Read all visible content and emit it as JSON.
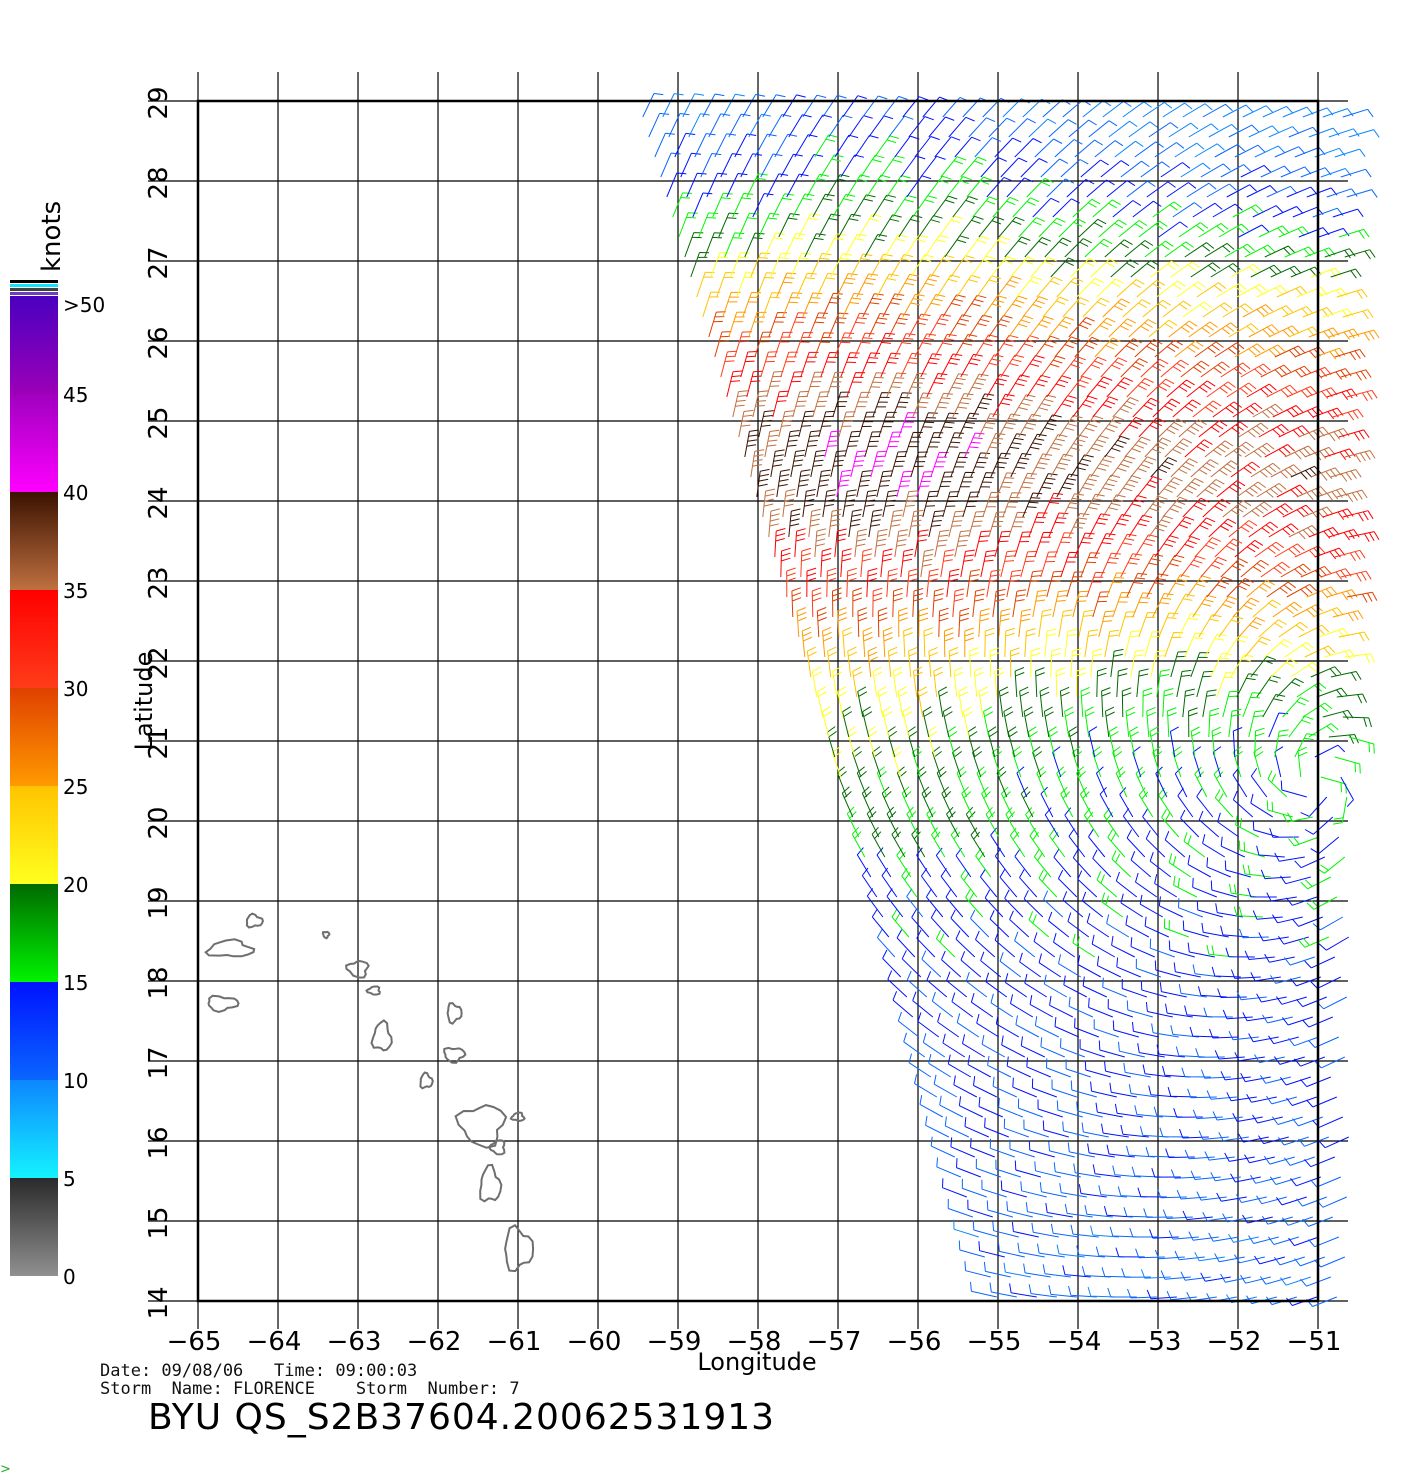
{
  "colorbar": {
    "unit": "knots",
    "tick_labels": [
      "0",
      "5",
      "10",
      "15",
      "20",
      "25",
      "30",
      "35",
      "40",
      "45",
      ">50"
    ],
    "bands": [
      {
        "from": 0,
        "to": 5,
        "top": "#2a2a2a",
        "bottom": "#909090"
      },
      {
        "from": 5,
        "to": 10,
        "top": "#0d86ff",
        "bottom": "#14f3ff"
      },
      {
        "from": 10,
        "to": 15,
        "top": "#0012ff",
        "bottom": "#0a66ff"
      },
      {
        "from": 15,
        "to": 20,
        "top": "#006a00",
        "bottom": "#00f400"
      },
      {
        "from": 20,
        "to": 25,
        "top": "#ffc400",
        "bottom": "#ffff1e"
      },
      {
        "from": 25,
        "to": 30,
        "top": "#e04000",
        "bottom": "#ff9a00"
      },
      {
        "from": 30,
        "to": 35,
        "top": "#ff0000",
        "bottom": "#ff3c1a"
      },
      {
        "from": 35,
        "to": 40,
        "top": "#3a1200",
        "bottom": "#c07040"
      },
      {
        "from": 40,
        "to": 45,
        "top": "#a000c0",
        "bottom": "#ff00ff"
      },
      {
        "from": 45,
        "to": 50,
        "top": "#4a00c0",
        "bottom": "#9c00b8"
      }
    ]
  },
  "map": {
    "xlabel": "Longitude",
    "ylabel": "Latitude",
    "lon_range": [
      -65,
      -51
    ],
    "lat_range": [
      14,
      29
    ],
    "lon_ticks": [
      "−65",
      "−64",
      "−63",
      "−62",
      "−61",
      "−60",
      "−59",
      "−58",
      "−57",
      "−56",
      "−55",
      "−54",
      "−53",
      "−52",
      "−51"
    ],
    "lat_ticks": [
      "14",
      "15",
      "16",
      "17",
      "18",
      "19",
      "20",
      "21",
      "22",
      "23",
      "24",
      "25",
      "26",
      "27",
      "28",
      "29"
    ],
    "coastline_color": "#6e6e6e",
    "islands": [
      {
        "name": "Puerto Rico",
        "lon": -64.6,
        "lat": 18.4
      },
      {
        "name": "Vieques",
        "lon": -64.3,
        "lat": 18.75
      },
      {
        "name": "St. Croix",
        "lon": -64.7,
        "lat": 17.72
      },
      {
        "name": "Saba",
        "lon": -63.4,
        "lat": 18.58
      },
      {
        "name": "Anguilla/St. Martin",
        "lon": -63.0,
        "lat": 18.15
      },
      {
        "name": "St. Barthelemy",
        "lon": -62.8,
        "lat": 17.88
      },
      {
        "name": "St. Kitts & Nevis",
        "lon": -62.7,
        "lat": 17.3
      },
      {
        "name": "Montserrat",
        "lon": -62.15,
        "lat": 16.75
      },
      {
        "name": "Barbuda",
        "lon": -61.8,
        "lat": 17.6
      },
      {
        "name": "Antigua",
        "lon": -61.8,
        "lat": 17.08
      },
      {
        "name": "Guadeloupe",
        "lon": -61.45,
        "lat": 16.2
      },
      {
        "name": "Marie-Galante",
        "lon": -61.25,
        "lat": 15.92
      },
      {
        "name": "Desirade",
        "lon": -61.0,
        "lat": 16.3
      },
      {
        "name": "Dominica",
        "lon": -61.35,
        "lat": 15.45
      },
      {
        "name": "Martinique",
        "lon": -61.0,
        "lat": 14.65
      }
    ]
  },
  "wind_field": {
    "swath": {
      "left_top_lon": -59.5,
      "left_bottom_lon": -55.0,
      "right_lon": -50.6
    },
    "center": {
      "lon": -51.0,
      "lat": 20.5
    },
    "description_key": "wind barbs colored by speed"
  },
  "footer": {
    "date_line": "Date: 09/08/06   Time: 09:00:03",
    "storm_line": "Storm  Name: FLORENCE    Storm  Number: 7",
    "product": "BYU  QS_S2B37604.20062531913"
  },
  "corner_mark": ">"
}
